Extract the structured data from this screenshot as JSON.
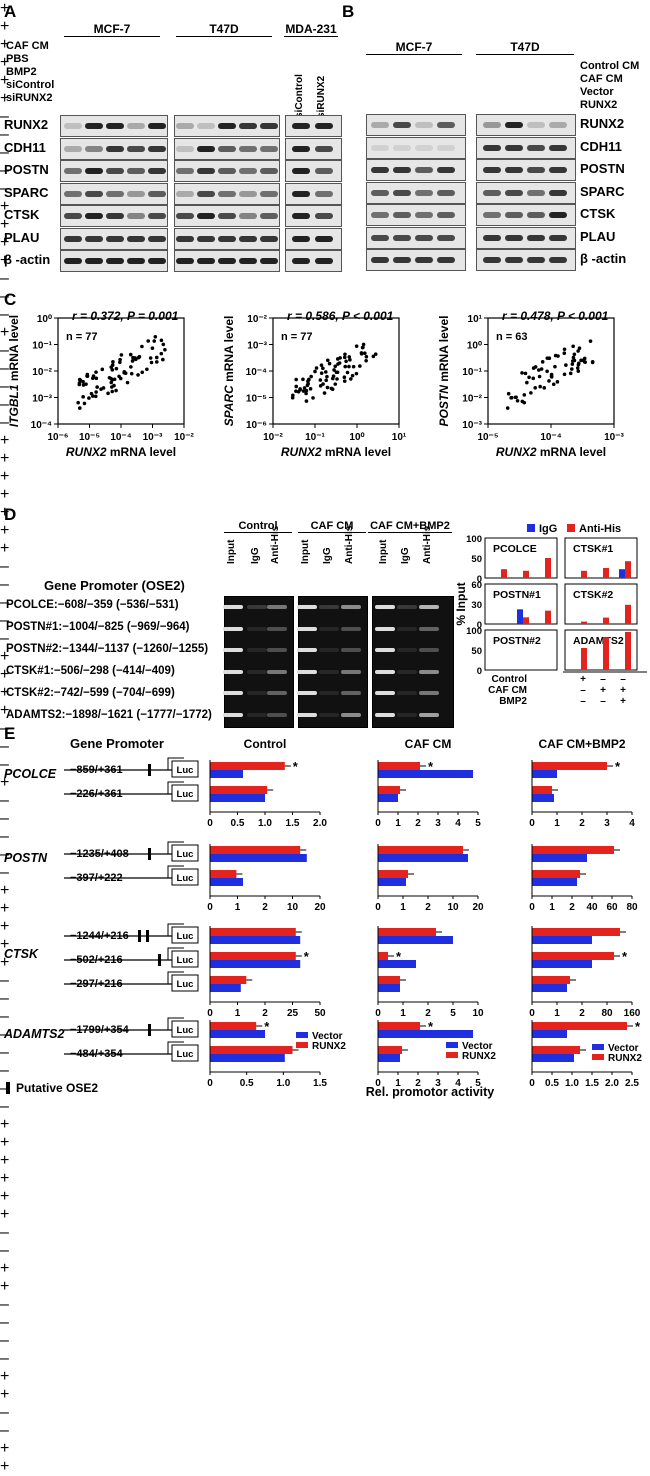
{
  "panels": {
    "A": "A",
    "B": "B",
    "C": "C",
    "D": "D",
    "E": "E"
  },
  "panelA": {
    "lines": [
      "MCF-7",
      "T47D",
      "MDA-231"
    ],
    "row_labels": [
      "CAF CM",
      "PBS",
      "BMP2",
      "siControl",
      "siRUNX2"
    ],
    "mcf7_signs": [
      [
        "+",
        "+",
        "+",
        "+",
        "+"
      ],
      [
        "+",
        "–",
        "–",
        "–",
        "–"
      ],
      [
        "–",
        "+",
        "+",
        "+",
        "+"
      ],
      [
        "–",
        "–",
        "–",
        "+",
        "–"
      ],
      [
        "–",
        "–",
        "–",
        "–",
        "+"
      ]
    ],
    "t47d_signs": [
      [
        "+",
        "+",
        "+",
        "+",
        "+"
      ],
      [
        "+",
        "–",
        "–",
        "–",
        "–"
      ],
      [
        "–",
        "+",
        "+",
        "+",
        "+"
      ],
      [
        "–",
        "–",
        "–",
        "+",
        "–"
      ],
      [
        "–",
        "–",
        "–",
        "–",
        "+"
      ]
    ],
    "mda_lanes": [
      "siControl",
      "siRUNX2"
    ],
    "proteins": [
      "RUNX2",
      "CDH11",
      "POSTN",
      "SPARC",
      "CTSK",
      "PLAU",
      "β -actin"
    ]
  },
  "panelB": {
    "lines": [
      "MCF-7",
      "T47D"
    ],
    "row_labels": [
      "Control CM",
      "CAF CM",
      "Vector",
      "RUNX2"
    ],
    "signs": [
      [
        "+",
        "+",
        "–",
        "–"
      ],
      [
        "–",
        "–",
        "+",
        "+"
      ],
      [
        "+",
        "–",
        "+",
        "–"
      ],
      [
        "–",
        "+",
        "–",
        "+"
      ]
    ],
    "proteins": [
      "RUNX2",
      "CDH11",
      "POSTN",
      "SPARC",
      "CTSK",
      "PLAU",
      "β -actin"
    ]
  },
  "panelC": {
    "plots": [
      {
        "stat_r": "r = 0.372, ",
        "stat_p": "P = 0.001",
        "n": "n = 77",
        "ylabel_gene": "ITGBL1",
        "ylabel_rest": " mRNA level",
        "xlabel_gene": "RUNX2",
        "xlabel_rest": " mRNA level",
        "yticks": [
          "10⁰",
          "10⁻¹",
          "10⁻²",
          "10⁻³",
          "10⁻⁴"
        ],
        "xticks": [
          "10⁻⁶",
          "10⁻⁵",
          "10⁻⁴",
          "10⁻³",
          "10⁻²"
        ]
      },
      {
        "stat_r": "r = 0.586, ",
        "stat_p": "P < 0.001",
        "n": "n = 77",
        "ylabel_gene": "SPARC",
        "ylabel_rest": " mRNA level",
        "xlabel_gene": "RUNX2",
        "xlabel_rest": " mRNA level",
        "yticks": [
          "10⁻²",
          "10⁻³",
          "10⁻⁴",
          "10⁻⁵",
          "10⁻⁶"
        ],
        "xticks": [
          "10⁻²",
          "10⁻¹",
          "10⁰",
          "10¹"
        ]
      },
      {
        "stat_r": "r = 0.478, ",
        "stat_p": "P < 0.001",
        "n": "n = 63",
        "ylabel_gene": "POSTN",
        "ylabel_rest": " mRNA level",
        "xlabel_gene": "RUNX2",
        "xlabel_rest": " mRNA level",
        "yticks": [
          "10¹",
          "10⁰",
          "10⁻¹",
          "10⁻²",
          "10⁻³"
        ],
        "xticks": [
          "10⁻⁵",
          "10⁻⁴",
          "10⁻³"
        ]
      }
    ]
  },
  "panelD": {
    "groups": [
      "Control",
      "CAF CM",
      "CAF CM+BMP2"
    ],
    "lanes": [
      "Input",
      "IgG",
      "Anti-His"
    ],
    "title": "Gene Promoter (OSE2)",
    "promoters": [
      "PCOLCE:−608/−359 (−536/−531)",
      "POSTN#1:−1004/−825 (−969/−964)",
      "POSTN#2:−1344/−1137 (−1260/−1255)",
      "CTSK#1:−506/−298 (−414/−409)",
      "CTSK#2:−742/−599 (−704/−699)",
      "ADAMTS2:−1898/−1621 (−1777/−1772)"
    ],
    "legend": [
      "IgG",
      "Anti-His"
    ],
    "ylabel": "% Input",
    "cond_labels": [
      "Control",
      "CAF CM",
      "BMP2"
    ],
    "cond_signs": [
      [
        "+",
        "–",
        "–"
      ],
      [
        "–",
        "+",
        "+"
      ],
      [
        "–",
        "–",
        "+"
      ]
    ],
    "colors": {
      "igg": "#1f2fe0",
      "his": "#e3231d"
    }
  },
  "chart_data": [
    {
      "type": "bar",
      "title": "PCOLCE",
      "categories": [
        "Control",
        "CAF CM",
        "CAF CM+BMP2"
      ],
      "ylim": [
        0,
        100
      ],
      "yticks": [
        "100",
        "50",
        "0"
      ],
      "series": [
        {
          "name": "IgG",
          "values": [
            0,
            0,
            0
          ]
        },
        {
          "name": "Anti-His",
          "values": [
            22,
            18,
            50
          ]
        }
      ]
    },
    {
      "type": "bar",
      "title": "CTSK#1",
      "categories": [
        "Control",
        "CAF CM",
        "CAF CM+BMP2"
      ],
      "ylim": [
        0,
        100
      ],
      "yticks": [
        "100",
        "50",
        "0"
      ],
      "series": [
        {
          "name": "IgG",
          "values": [
            0,
            0,
            22
          ]
        },
        {
          "name": "Anti-His",
          "values": [
            18,
            25,
            42
          ]
        }
      ]
    },
    {
      "type": "bar",
      "title": "POSTN#1",
      "categories": [
        "Control",
        "CAF CM",
        "CAF CM+BMP2"
      ],
      "ylim": [
        0,
        60
      ],
      "yticks": [
        "60",
        "30",
        "0"
      ],
      "series": [
        {
          "name": "IgG",
          "values": [
            0,
            22,
            0
          ]
        },
        {
          "name": "Anti-His",
          "values": [
            0,
            10,
            20
          ]
        }
      ]
    },
    {
      "type": "bar",
      "title": "CTSK#2",
      "categories": [
        "Control",
        "CAF CM",
        "CAF CM+BMP2"
      ],
      "ylim": [
        0,
        50
      ],
      "yticks": [
        "50",
        "25",
        "0"
      ],
      "series": [
        {
          "name": "IgG",
          "values": [
            0,
            0,
            0
          ]
        },
        {
          "name": "Anti-His",
          "values": [
            3,
            8,
            24
          ]
        }
      ]
    },
    {
      "type": "bar",
      "title": "POSTN#2",
      "categories": [
        "Control",
        "CAF CM",
        "CAF CM+BMP2"
      ],
      "ylim": [
        0,
        100
      ],
      "yticks": [
        "100",
        "50",
        "0"
      ],
      "series": [
        {
          "name": "IgG",
          "values": [
            0,
            0,
            0
          ]
        },
        {
          "name": "Anti-His",
          "values": [
            0,
            0,
            0
          ]
        }
      ]
    },
    {
      "type": "bar",
      "title": "ADAMTS2",
      "categories": [
        "Control",
        "CAF CM",
        "CAF CM+BMP2"
      ],
      "ylim": [
        0,
        100
      ],
      "yticks": [
        "100",
        "50",
        "0"
      ],
      "series": [
        {
          "name": "IgG",
          "values": [
            0,
            0,
            0
          ]
        },
        {
          "name": "Anti-His",
          "values": [
            55,
            82,
            95
          ]
        }
      ]
    }
  ],
  "panelE": {
    "gene_promoter": "Gene Promoter",
    "conditions": [
      "Control",
      "CAF CM",
      "CAF CM+BMP2"
    ],
    "genes": [
      "PCOLCE",
      "POSTN",
      "CTSK",
      "ADAMTS2"
    ],
    "constructs": [
      [
        "−859/+361",
        "−226/+361"
      ],
      [
        "−1235/+408",
        "−397/+222"
      ],
      [
        "−1244/+216",
        "−502/+216",
        "−297/+216"
      ],
      [
        "−1799/+354",
        "−484/+354"
      ]
    ],
    "luc": "Luc",
    "legend": [
      "Vector",
      "RUNX2"
    ],
    "ose2_note": "Putative OSE2",
    "xlabel": "Rel. promotor activity",
    "axes": [
      [
        [
          "0",
          "0.5",
          "1.0",
          "1.5",
          "2.0"
        ],
        [
          "0",
          "1",
          "2",
          "3",
          "4",
          "5"
        ],
        [
          "0",
          "1",
          "2",
          "3",
          "4"
        ]
      ],
      [
        [
          "0",
          "1",
          "2",
          "10",
          "20"
        ],
        [
          "0",
          "1",
          "2",
          "10",
          "20"
        ],
        [
          "0",
          "1",
          "2",
          "40",
          "60",
          "80"
        ]
      ],
      [
        [
          "0",
          "1",
          "2",
          "25",
          "50"
        ],
        [
          "0",
          "1",
          "2",
          "5",
          "10"
        ],
        [
          "0",
          "1",
          "2",
          "80",
          "160"
        ]
      ],
      [
        [
          "0",
          "0.5",
          "1.0",
          "1.5"
        ],
        [
          "0",
          "1",
          "2",
          "3",
          "4",
          "5"
        ],
        [
          "0",
          "0.5",
          "1.0",
          "1.5",
          "2.0",
          "2.5"
        ]
      ]
    ],
    "asterisk": "*"
  }
}
